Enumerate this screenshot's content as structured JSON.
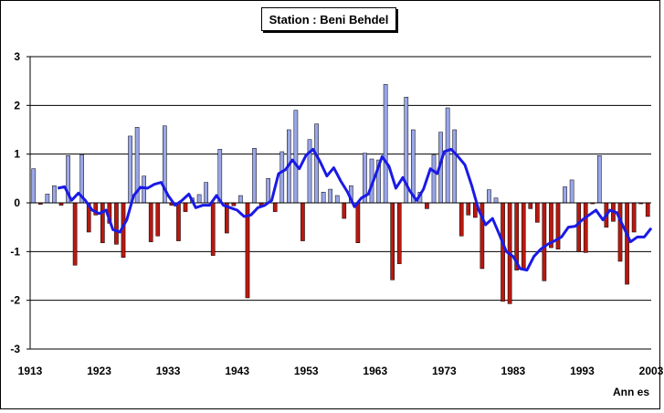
{
  "chart_data": {
    "type": "bar",
    "title": "Station : Beni Behdel",
    "xlabel": "Ann  es",
    "ylabel": "",
    "ylim": [
      -3,
      3
    ],
    "yticks": [
      "3",
      "2",
      "1",
      "0",
      "-1",
      "-2",
      "-3"
    ],
    "xticks": [
      "1913",
      "1923",
      "1933",
      "1943",
      "1953",
      "1963",
      "1973",
      "1983",
      "1993",
      "2003"
    ],
    "grid": true,
    "legend": "none",
    "colors": {
      "positive_bar": "#9aa6e8",
      "negative_bar": "#b8180f",
      "line": "#1a1ae6",
      "grid": "#000000"
    },
    "series": [
      {
        "type": "bar",
        "x": [
          1913,
          1914,
          1915,
          1916,
          1917,
          1918,
          1919,
          1920,
          1921,
          1922,
          1923,
          1924,
          1925,
          1926,
          1927,
          1928,
          1929,
          1930,
          1931,
          1932,
          1933,
          1934,
          1935,
          1936,
          1937,
          1938,
          1939,
          1940,
          1941,
          1942,
          1943,
          1944,
          1945,
          1946,
          1947,
          1948,
          1949,
          1950,
          1951,
          1952,
          1953,
          1954,
          1955,
          1956,
          1957,
          1958,
          1959,
          1960,
          1961,
          1962,
          1963,
          1964,
          1965,
          1966,
          1967,
          1968,
          1969,
          1970,
          1971,
          1972,
          1973,
          1974,
          1975,
          1976,
          1977,
          1978,
          1979,
          1980,
          1981,
          1982,
          1983,
          1984,
          1985,
          1986,
          1987,
          1988,
          1989,
          1990,
          1991,
          1992,
          1993,
          1994,
          1995,
          1996,
          1997,
          1998,
          1999,
          2000,
          2001,
          2002
        ],
        "values": [
          0.7,
          -0.03,
          0.18,
          0.35,
          -0.05,
          0.97,
          -1.28,
          0.99,
          -0.6,
          -0.25,
          -0.82,
          -0.42,
          -0.85,
          -1.12,
          1.37,
          1.55,
          0.55,
          -0.8,
          -0.68,
          1.58,
          -0.05,
          -0.78,
          -0.18,
          0.1,
          0.17,
          0.42,
          -1.08,
          1.1,
          -0.62,
          -0.06,
          0.15,
          -1.95,
          1.12,
          -0.05,
          0.5,
          -0.18,
          1.05,
          1.5,
          1.9,
          -0.78,
          1.3,
          1.62,
          0.22,
          0.28,
          0.15,
          -0.32,
          0.35,
          -0.82,
          1.02,
          0.9,
          0.88,
          2.43,
          -1.58,
          -1.25,
          2.17,
          1.5,
          0.22,
          -0.12,
          0.98,
          1.45,
          1.95,
          1.5,
          -0.68,
          -0.25,
          -0.3,
          -1.35,
          0.27,
          0.1,
          -2.02,
          -2.07,
          -1.38,
          -1.35,
          -0.12,
          -0.4,
          -1.6,
          -0.92,
          -0.95,
          0.33,
          0.47,
          -1.0,
          -1.02,
          -0.02,
          0.97,
          -0.5,
          -0.38,
          -1.2,
          -1.67,
          -0.6,
          -0.02,
          -0.28
        ]
      },
      {
        "type": "line",
        "x": [
          1917,
          1918,
          1919,
          1920,
          1921,
          1922,
          1923,
          1924,
          1925,
          1926,
          1927,
          1928,
          1929,
          1930,
          1931,
          1932,
          1933,
          1934,
          1935,
          1936,
          1937,
          1938,
          1939,
          1940,
          1941,
          1942,
          1943,
          1944,
          1945,
          1946,
          1947,
          1948,
          1949,
          1950,
          1951,
          1952,
          1953,
          1954,
          1955,
          1956,
          1957,
          1958,
          1959,
          1960,
          1961,
          1962,
          1963,
          1964,
          1965,
          1966,
          1967,
          1968,
          1969,
          1970,
          1971,
          1972,
          1973,
          1974,
          1975,
          1976,
          1977,
          1978,
          1979,
          1980,
          1981,
          1982,
          1983,
          1984,
          1985,
          1986,
          1987,
          1988,
          1989,
          1990,
          1991,
          1992,
          1993,
          1994,
          1995,
          1996,
          1997,
          1998,
          1999,
          2000,
          2001,
          2002,
          2003
        ],
        "values": [
          0.3,
          0.33,
          0.05,
          0.2,
          0.05,
          -0.15,
          -0.22,
          -0.15,
          -0.55,
          -0.6,
          -0.35,
          0.15,
          0.32,
          0.3,
          0.38,
          0.42,
          0.15,
          -0.05,
          0.05,
          0.18,
          -0.1,
          -0.05,
          -0.05,
          0.15,
          -0.05,
          -0.1,
          -0.15,
          -0.28,
          -0.25,
          -0.1,
          -0.05,
          0.05,
          0.6,
          0.68,
          0.88,
          0.7,
          0.98,
          1.1,
          0.85,
          0.55,
          0.72,
          0.45,
          0.22,
          -0.08,
          0.1,
          0.18,
          0.55,
          0.95,
          0.75,
          0.3,
          0.52,
          0.25,
          0.05,
          0.28,
          0.7,
          0.6,
          1.05,
          1.1,
          0.95,
          0.78,
          0.35,
          -0.15,
          -0.45,
          -0.32,
          -0.65,
          -1.0,
          -1.1,
          -1.35,
          -1.38,
          -1.1,
          -0.95,
          -0.85,
          -0.78,
          -0.7,
          -0.5,
          -0.48,
          -0.35,
          -0.25,
          -0.15,
          -0.35,
          -0.15,
          -0.2,
          -0.5,
          -0.8,
          -0.7,
          -0.7,
          -0.52
        ]
      }
    ]
  }
}
